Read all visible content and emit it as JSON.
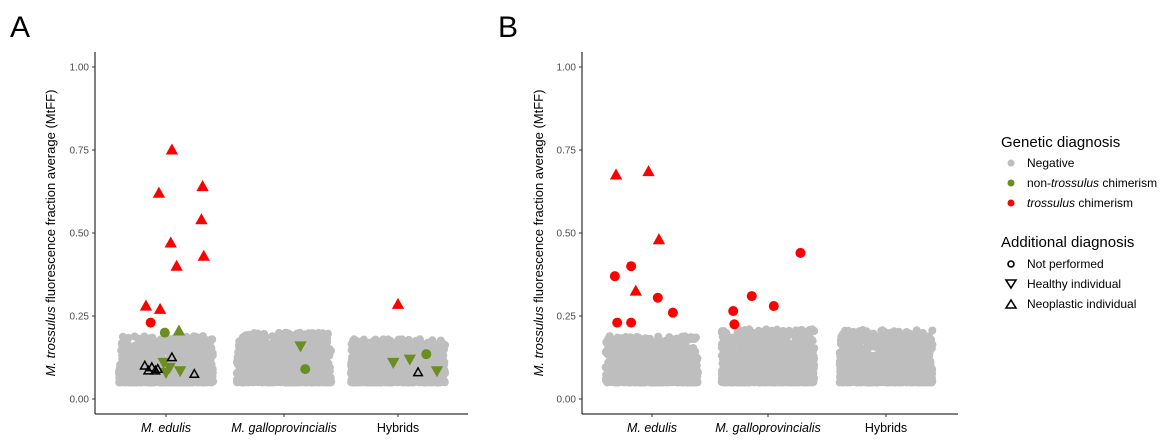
{
  "chart_data": [
    {
      "type": "scatter",
      "panel": "A",
      "ylabel_italic": "M. trossulus",
      "ylabel_rest": " fluorescence fraction average (MtFF)",
      "ylim": [
        0,
        1.05
      ],
      "y_ticks": [
        "0.00",
        "0.25",
        "0.50",
        "0.75",
        "1.00"
      ],
      "categories": [
        "M. edulis",
        "M. galloprovincialis",
        "Hybrids"
      ],
      "negative_cloud": [
        {
          "category": "M. edulis",
          "y_min": 0.05,
          "y_max": 0.19
        },
        {
          "category": "M. galloprovincialis",
          "y_min": 0.05,
          "y_max": 0.2
        },
        {
          "category": "Hybrids",
          "y_min": 0.05,
          "y_max": 0.18
        }
      ],
      "points": [
        {
          "category": "M. edulis",
          "x": -0.17,
          "y": 0.28,
          "shape": "up",
          "color": "#ff0000"
        },
        {
          "category": "M. edulis",
          "x": -0.05,
          "y": 0.27,
          "shape": "up",
          "color": "#ff0000"
        },
        {
          "category": "M. edulis",
          "x": -0.13,
          "y": 0.23,
          "shape": "circle",
          "color": "#ff0000"
        },
        {
          "category": "M. edulis",
          "x": -0.06,
          "y": 0.62,
          "shape": "up",
          "color": "#ff0000"
        },
        {
          "category": "M. edulis",
          "x": 0.05,
          "y": 0.75,
          "shape": "up",
          "color": "#ff0000"
        },
        {
          "category": "M. edulis",
          "x": 0.04,
          "y": 0.47,
          "shape": "up",
          "color": "#ff0000"
        },
        {
          "category": "M. edulis",
          "x": 0.09,
          "y": 0.4,
          "shape": "up",
          "color": "#ff0000"
        },
        {
          "category": "M. edulis",
          "x": 0.31,
          "y": 0.64,
          "shape": "up",
          "color": "#ff0000"
        },
        {
          "category": "M. edulis",
          "x": 0.3,
          "y": 0.54,
          "shape": "up",
          "color": "#ff0000"
        },
        {
          "category": "M. edulis",
          "x": 0.32,
          "y": 0.43,
          "shape": "up",
          "color": "#ff0000"
        },
        {
          "category": "M. edulis",
          "x": -0.01,
          "y": 0.2,
          "shape": "circle",
          "color": "#6b8e23"
        },
        {
          "category": "M. edulis",
          "x": 0.11,
          "y": 0.205,
          "shape": "up",
          "color": "#6b8e23"
        },
        {
          "category": "M. edulis",
          "x": -0.02,
          "y": 0.11,
          "shape": "down",
          "color": "#6b8e23"
        },
        {
          "category": "M. edulis",
          "x": 0.03,
          "y": 0.095,
          "shape": "down",
          "color": "#6b8e23"
        },
        {
          "category": "M. edulis",
          "x": 0.0,
          "y": 0.08,
          "shape": "down",
          "color": "#6b8e23"
        },
        {
          "category": "M. edulis",
          "x": 0.12,
          "y": 0.085,
          "shape": "down",
          "color": "#6b8e23"
        },
        {
          "category": "M. edulis",
          "x": -0.18,
          "y": 0.1,
          "shape": "up-open",
          "color": "#000000"
        },
        {
          "category": "M. edulis",
          "x": -0.15,
          "y": 0.085,
          "shape": "up-open",
          "color": "#000000"
        },
        {
          "category": "M. edulis",
          "x": -0.12,
          "y": 0.095,
          "shape": "up-open",
          "color": "#000000"
        },
        {
          "category": "M. edulis",
          "x": -0.07,
          "y": 0.09,
          "shape": "up-open",
          "color": "#000000"
        },
        {
          "category": "M. edulis",
          "x": -0.09,
          "y": 0.085,
          "shape": "up-open",
          "color": "#000000"
        },
        {
          "category": "M. edulis",
          "x": 0.05,
          "y": 0.125,
          "shape": "up-open",
          "color": "#000000"
        },
        {
          "category": "M. edulis",
          "x": 0.24,
          "y": 0.075,
          "shape": "up-open",
          "color": "#000000"
        },
        {
          "category": "M. galloprovincialis",
          "x": 0.14,
          "y": 0.16,
          "shape": "down",
          "color": "#6b8e23"
        },
        {
          "category": "M. galloprovincialis",
          "x": 0.18,
          "y": 0.09,
          "shape": "circle",
          "color": "#6b8e23"
        },
        {
          "category": "Hybrids",
          "x": 0.0,
          "y": 0.285,
          "shape": "up",
          "color": "#ff0000"
        },
        {
          "category": "Hybrids",
          "x": -0.04,
          "y": 0.11,
          "shape": "down",
          "color": "#6b8e23"
        },
        {
          "category": "Hybrids",
          "x": 0.1,
          "y": 0.12,
          "shape": "down",
          "color": "#6b8e23"
        },
        {
          "category": "Hybrids",
          "x": 0.24,
          "y": 0.135,
          "shape": "circle",
          "color": "#6b8e23"
        },
        {
          "category": "Hybrids",
          "x": 0.33,
          "y": 0.085,
          "shape": "down",
          "color": "#6b8e23"
        },
        {
          "category": "Hybrids",
          "x": 0.17,
          "y": 0.08,
          "shape": "up-open",
          "color": "#000000"
        }
      ]
    },
    {
      "type": "scatter",
      "panel": "B",
      "ylabel_italic": "M. trossulus",
      "ylabel_rest": " fluorescence fraction average (MtFF)",
      "ylim": [
        0,
        1.05
      ],
      "y_ticks": [
        "0.00",
        "0.25",
        "0.50",
        "0.75",
        "1.00"
      ],
      "categories": [
        "M. edulis",
        "M. galloprovincialis",
        "Hybrids"
      ],
      "negative_cloud": [
        {
          "category": "M. edulis",
          "y_min": 0.05,
          "y_max": 0.19
        },
        {
          "category": "M. galloprovincialis",
          "y_min": 0.05,
          "y_max": 0.21
        },
        {
          "category": "Hybrids",
          "y_min": 0.05,
          "y_max": 0.21
        }
      ],
      "points": [
        {
          "category": "M. edulis",
          "x": -0.37,
          "y": 0.16,
          "shape": "down",
          "color": "#bebebe"
        },
        {
          "category": "M. edulis",
          "x": -0.32,
          "y": 0.37,
          "shape": "circle",
          "color": "#ff0000"
        },
        {
          "category": "M. edulis",
          "x": -0.18,
          "y": 0.4,
          "shape": "circle",
          "color": "#ff0000"
        },
        {
          "category": "M. edulis",
          "x": -0.3,
          "y": 0.23,
          "shape": "circle",
          "color": "#ff0000"
        },
        {
          "category": "M. edulis",
          "x": -0.18,
          "y": 0.23,
          "shape": "circle",
          "color": "#ff0000"
        },
        {
          "category": "M. edulis",
          "x": -0.31,
          "y": 0.675,
          "shape": "up",
          "color": "#ff0000"
        },
        {
          "category": "M. edulis",
          "x": -0.03,
          "y": 0.685,
          "shape": "up",
          "color": "#ff0000"
        },
        {
          "category": "M. edulis",
          "x": -0.14,
          "y": 0.325,
          "shape": "up",
          "color": "#ff0000"
        },
        {
          "category": "M. edulis",
          "x": 0.06,
          "y": 0.48,
          "shape": "up",
          "color": "#ff0000"
        },
        {
          "category": "M. edulis",
          "x": 0.05,
          "y": 0.305,
          "shape": "circle",
          "color": "#ff0000"
        },
        {
          "category": "M. edulis",
          "x": 0.18,
          "y": 0.26,
          "shape": "circle",
          "color": "#ff0000"
        },
        {
          "category": "M. galloprovincialis",
          "x": -0.3,
          "y": 0.265,
          "shape": "circle",
          "color": "#ff0000"
        },
        {
          "category": "M. galloprovincialis",
          "x": -0.29,
          "y": 0.225,
          "shape": "circle",
          "color": "#ff0000"
        },
        {
          "category": "M. galloprovincialis",
          "x": -0.14,
          "y": 0.31,
          "shape": "circle",
          "color": "#ff0000"
        },
        {
          "category": "M. galloprovincialis",
          "x": 0.05,
          "y": 0.28,
          "shape": "circle",
          "color": "#ff0000"
        },
        {
          "category": "M. galloprovincialis",
          "x": 0.28,
          "y": 0.44,
          "shape": "circle",
          "color": "#ff0000"
        }
      ]
    }
  ],
  "legend": {
    "genetic_title": "Genetic diagnosis",
    "genetic_items": [
      {
        "label": "Negative",
        "color": "#bebebe"
      },
      {
        "label_pre": "non-",
        "label_italic": "trossulus",
        "label_post": " chimerism",
        "color": "#6b8e23"
      },
      {
        "label_pre": "",
        "label_italic": "trossulus",
        "label_post": " chimerism",
        "color": "#ff0000"
      }
    ],
    "additional_title": "Additional diagnosis",
    "additional_items": [
      {
        "label": "Not performed",
        "shape": "circle-open"
      },
      {
        "label": "Healthy individual",
        "shape": "down-open"
      },
      {
        "label": "Neoplastic individual",
        "shape": "up-open"
      }
    ]
  },
  "colors": {
    "negative": "#bebebe",
    "non_trossulus": "#6b8e23",
    "trossulus": "#ff0000"
  }
}
